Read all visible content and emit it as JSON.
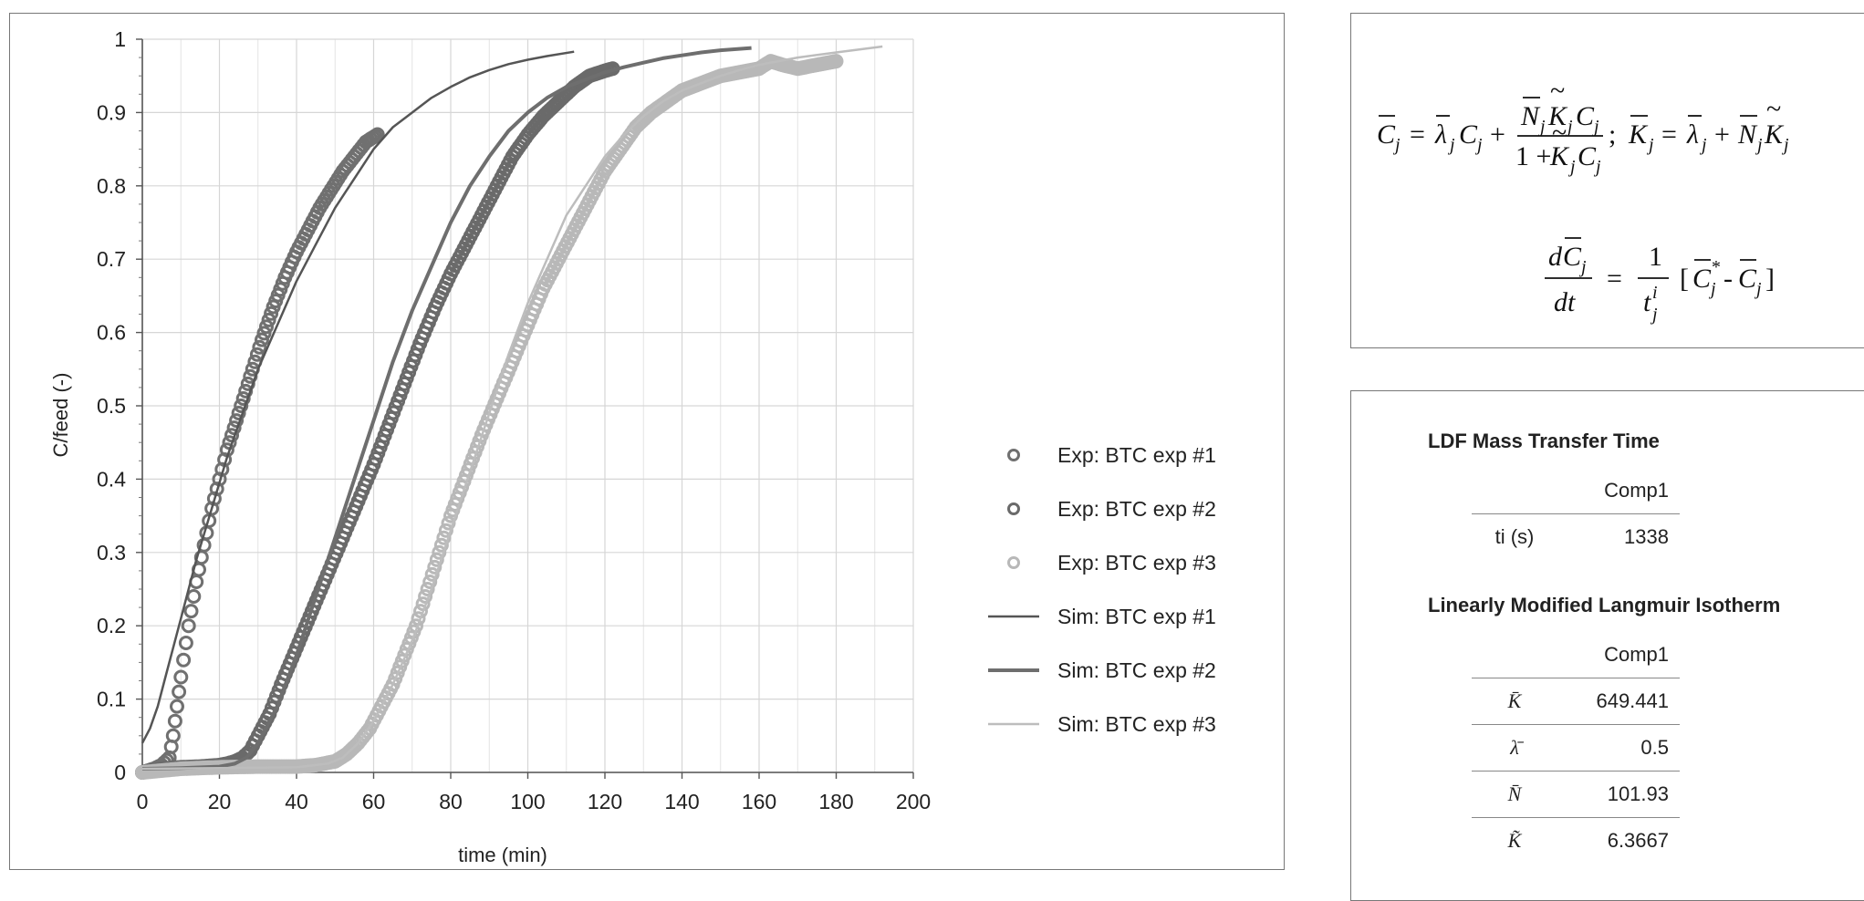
{
  "chart_data": {
    "type": "scatter",
    "title": "",
    "xlabel": "time (min)",
    "ylabel": "C/feed (-)",
    "xlim": [
      0,
      200
    ],
    "ylim": [
      0,
      1
    ],
    "xticks": [
      "0",
      "20",
      "40",
      "60",
      "80",
      "100",
      "120",
      "140",
      "160",
      "180",
      "200"
    ],
    "yticks": [
      "0",
      "0.1",
      "0.2",
      "0.3",
      "0.4",
      "0.5",
      "0.6",
      "0.7",
      "0.8",
      "0.9",
      "1"
    ],
    "grid": true,
    "legend_position": "right",
    "series": [
      {
        "name": "Exp: BTC exp #1",
        "kind": "markers",
        "color": "#707070",
        "x": [
          0,
          3,
          5,
          7,
          8,
          9,
          10,
          12,
          14,
          16,
          18,
          20,
          22,
          25,
          28,
          31,
          34,
          37,
          40,
          43,
          46,
          49,
          52,
          55,
          58,
          61
        ],
        "y": [
          0,
          0.005,
          0.01,
          0.02,
          0.05,
          0.09,
          0.13,
          0.2,
          0.26,
          0.31,
          0.36,
          0.4,
          0.44,
          0.49,
          0.54,
          0.59,
          0.635,
          0.675,
          0.71,
          0.74,
          0.77,
          0.795,
          0.82,
          0.84,
          0.86,
          0.87
        ]
      },
      {
        "name": "Exp: BTC exp #2",
        "kind": "markers",
        "color": "#6a6a6a",
        "x": [
          0,
          5,
          10,
          15,
          20,
          22,
          24,
          26,
          28,
          30,
          33,
          36,
          40,
          44,
          48,
          52,
          56,
          60,
          64,
          68,
          72,
          76,
          80,
          84,
          88,
          92,
          96,
          100,
          104,
          108,
          112,
          116,
          120,
          122
        ],
        "y": [
          0,
          0.005,
          0.007,
          0.008,
          0.01,
          0.012,
          0.015,
          0.02,
          0.03,
          0.05,
          0.08,
          0.12,
          0.17,
          0.22,
          0.27,
          0.32,
          0.37,
          0.42,
          0.475,
          0.53,
          0.585,
          0.635,
          0.68,
          0.72,
          0.76,
          0.8,
          0.84,
          0.87,
          0.895,
          0.915,
          0.935,
          0.95,
          0.957,
          0.96
        ]
      },
      {
        "name": "Exp: BTC exp #3",
        "kind": "markers",
        "color": "#b8b8b8",
        "x": [
          0,
          10,
          20,
          30,
          40,
          45,
          50,
          53,
          56,
          59,
          62,
          65,
          68,
          71,
          74,
          77,
          80,
          84,
          88,
          92,
          96,
          100,
          104,
          108,
          112,
          116,
          120,
          124,
          128,
          132,
          136,
          140,
          145,
          150,
          155,
          160,
          163,
          166,
          170,
          175,
          180
        ],
        "y": [
          0,
          0.005,
          0.007,
          0.008,
          0.008,
          0.01,
          0.015,
          0.025,
          0.04,
          0.06,
          0.09,
          0.12,
          0.16,
          0.2,
          0.25,
          0.3,
          0.35,
          0.405,
          0.46,
          0.51,
          0.56,
          0.61,
          0.66,
          0.7,
          0.74,
          0.78,
          0.82,
          0.85,
          0.88,
          0.9,
          0.915,
          0.93,
          0.94,
          0.95,
          0.955,
          0.96,
          0.97,
          0.965,
          0.96,
          0.965,
          0.97
        ]
      },
      {
        "name": "Sim: BTC exp #1",
        "kind": "line",
        "color": "#555555",
        "width": 2.5,
        "x": [
          0,
          2,
          4,
          6,
          8,
          10,
          14,
          18,
          22,
          26,
          30,
          35,
          40,
          45,
          50,
          55,
          60,
          65,
          70,
          75,
          80,
          85,
          90,
          95,
          100,
          105,
          112
        ],
        "y": [
          0.04,
          0.06,
          0.09,
          0.13,
          0.17,
          0.21,
          0.29,
          0.36,
          0.43,
          0.49,
          0.55,
          0.61,
          0.67,
          0.72,
          0.77,
          0.81,
          0.85,
          0.88,
          0.9,
          0.92,
          0.935,
          0.948,
          0.958,
          0.966,
          0.972,
          0.977,
          0.983
        ]
      },
      {
        "name": "Sim: BTC exp #2",
        "kind": "line",
        "color": "#6e6e6e",
        "width": 4,
        "x": [
          0,
          10,
          20,
          24,
          27,
          30,
          35,
          40,
          45,
          50,
          55,
          60,
          65,
          70,
          75,
          80,
          85,
          90,
          95,
          100,
          105,
          110,
          115,
          120,
          125,
          130,
          135,
          140,
          145,
          150,
          158
        ],
        "y": [
          0.005,
          0.006,
          0.008,
          0.012,
          0.02,
          0.04,
          0.09,
          0.16,
          0.24,
          0.32,
          0.4,
          0.48,
          0.56,
          0.63,
          0.69,
          0.75,
          0.8,
          0.84,
          0.875,
          0.9,
          0.92,
          0.935,
          0.945,
          0.955,
          0.962,
          0.968,
          0.974,
          0.978,
          0.982,
          0.985,
          0.988
        ]
      },
      {
        "name": "Sim: BTC exp #3",
        "kind": "line",
        "color": "#bdbdbd",
        "width": 2.5,
        "x": [
          0,
          20,
          40,
          48,
          52,
          56,
          60,
          65,
          70,
          75,
          80,
          85,
          90,
          95,
          100,
          105,
          110,
          115,
          120,
          125,
          130,
          135,
          140,
          145,
          150,
          155,
          160,
          170,
          180,
          192
        ],
        "y": [
          0.005,
          0.006,
          0.007,
          0.012,
          0.02,
          0.04,
          0.07,
          0.12,
          0.18,
          0.25,
          0.33,
          0.41,
          0.49,
          0.57,
          0.64,
          0.7,
          0.76,
          0.8,
          0.84,
          0.87,
          0.895,
          0.915,
          0.93,
          0.94,
          0.95,
          0.958,
          0.965,
          0.975,
          0.982,
          0.99
        ]
      }
    ]
  },
  "equations": {
    "langmuir": "C̄j = λ̄j Cj + (N̄j K̃j Cj) / (1 + K̃j Cj);  K̄j = λ̄j + N̄j K̃j",
    "ldf": "dC̄j / dt = 1 / tij [ C̄j* - C̄j ]"
  },
  "ldf_section": {
    "title": "LDF Mass Transfer Time",
    "column": "Comp1",
    "rows": [
      {
        "label": "ti (s)",
        "value": "1338"
      }
    ]
  },
  "isotherm_section": {
    "title": "Linearly Modified Langmuir Isotherm",
    "column": "Comp1",
    "rows": [
      {
        "label": "K̄",
        "value": "649.441"
      },
      {
        "label": "λ̄",
        "value": "0.5"
      },
      {
        "label": "N̄",
        "value": "101.93"
      },
      {
        "label": "K̃",
        "value": "6.3667"
      }
    ]
  }
}
